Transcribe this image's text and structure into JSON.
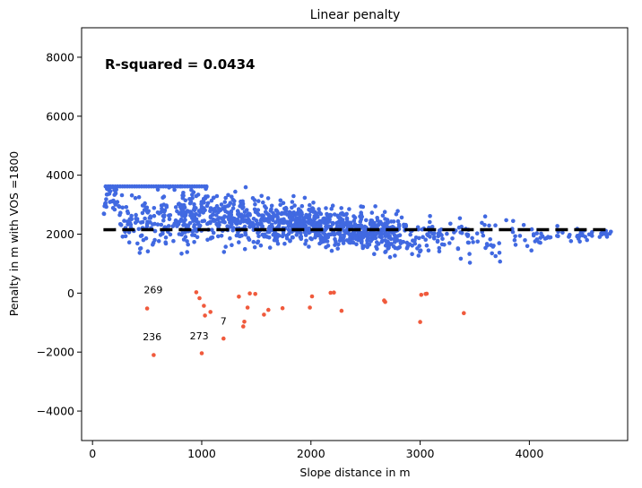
{
  "chart_data": {
    "type": "scatter",
    "title": "Linear penalty",
    "xlabel": "Slope distance in m",
    "ylabel": "Penalty in m with VOS =1800",
    "xlim": [
      -100,
      4900
    ],
    "ylim": [
      -5000,
      9000
    ],
    "xticks": [
      0,
      1000,
      2000,
      3000,
      4000
    ],
    "yticks": [
      -4000,
      -2000,
      0,
      2000,
      4000,
      6000,
      8000
    ],
    "xtick_labels": [
      "0",
      "1000",
      "2000",
      "3000",
      "4000"
    ],
    "ytick_labels": [
      "−4000",
      "−2000",
      "0",
      "2000",
      "4000",
      "6000",
      "8000"
    ],
    "r_squared_text": "R-squared = 0.0434",
    "trend_line": {
      "x": [
        100,
        4750
      ],
      "y": [
        2150,
        2150
      ],
      "style": "dashed",
      "color": "#000000"
    },
    "colors": {
      "positive": "#4169e1",
      "negative": "#f05a3c"
    },
    "negative_points": [
      [
        500,
        -520
      ],
      [
        560,
        -2100
      ],
      [
        950,
        30
      ],
      [
        980,
        -170
      ],
      [
        1000,
        -2040
      ],
      [
        1020,
        -430
      ],
      [
        1030,
        -760
      ],
      [
        1080,
        -640
      ],
      [
        1200,
        -1540
      ],
      [
        1340,
        -120
      ],
      [
        1380,
        -1130
      ],
      [
        1390,
        -970
      ],
      [
        1420,
        -490
      ],
      [
        1440,
        -10
      ],
      [
        1490,
        -30
      ],
      [
        1570,
        -730
      ],
      [
        1610,
        -570
      ],
      [
        1740,
        -510
      ],
      [
        1990,
        -490
      ],
      [
        2010,
        -110
      ],
      [
        2180,
        10
      ],
      [
        2210,
        20
      ],
      [
        2280,
        -600
      ],
      [
        2670,
        -250
      ],
      [
        2680,
        -300
      ],
      [
        3000,
        -980
      ],
      [
        3010,
        -60
      ],
      [
        3050,
        -30
      ],
      [
        3060,
        -20
      ],
      [
        3400,
        -680
      ]
    ],
    "annotations": [
      {
        "text": "269",
        "x": 470,
        "y": -3
      },
      {
        "text": "236",
        "x": 460,
        "y": -1600
      },
      {
        "text": "273",
        "x": 890,
        "y": -1570
      },
      {
        "text": "7",
        "x": 1170,
        "y": -1070
      }
    ],
    "positive_profile": [
      [
        100,
        2650,
        150
      ],
      [
        150,
        3600,
        400
      ],
      [
        250,
        2800,
        900
      ],
      [
        400,
        2400,
        1300
      ],
      [
        600,
        2500,
        1300
      ],
      [
        800,
        2600,
        1200
      ],
      [
        1000,
        2650,
        1100
      ],
      [
        1300,
        2500,
        1000
      ],
      [
        1600,
        2400,
        900
      ],
      [
        2000,
        2300,
        800
      ],
      [
        2400,
        2150,
        700
      ],
      [
        2800,
        2000,
        900
      ],
      [
        3200,
        2000,
        700
      ],
      [
        3700,
        1800,
        900
      ],
      [
        4200,
        2000,
        400
      ],
      [
        4750,
        2000,
        150
      ]
    ]
  }
}
